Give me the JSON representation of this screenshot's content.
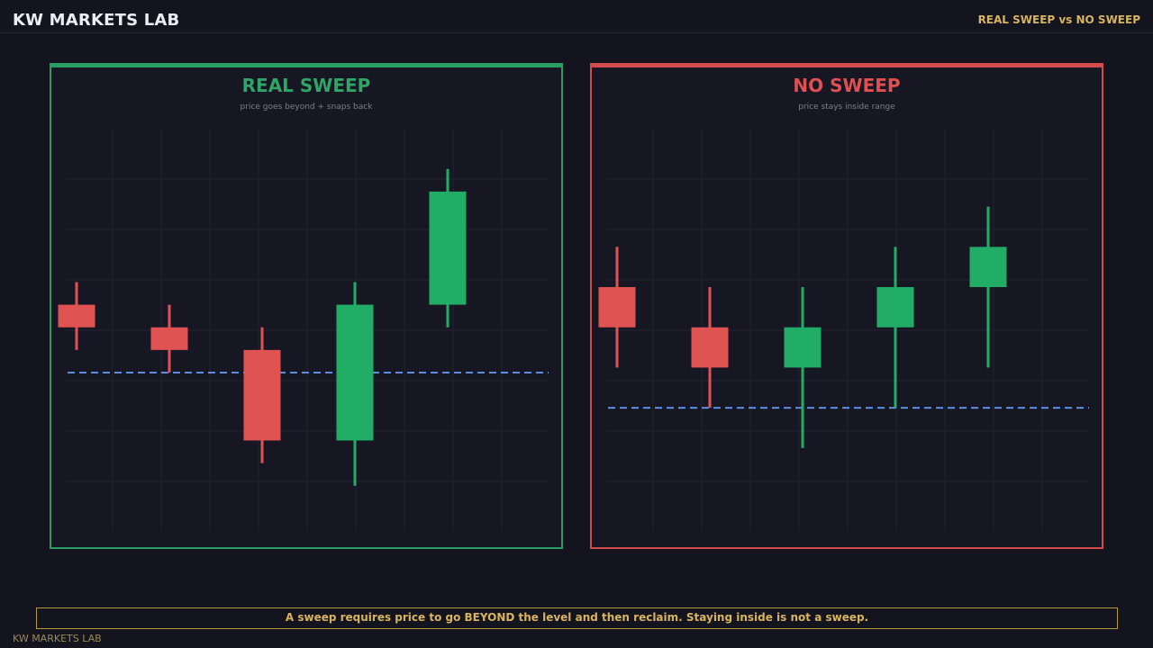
{
  "header": {
    "brand": "KW MARKETS LAB",
    "tagline": "REAL SWEEP vs NO SWEEP"
  },
  "colors": {
    "bull": "#21ad66",
    "bear": "#e05353",
    "level": "#5b8ee0",
    "grid": "#222231",
    "real_border": "#2a9d62",
    "no_border": "#d24c4c",
    "accent": "#d8b45e"
  },
  "chart_data": [
    {
      "type": "candlestick",
      "title": "REAL SWEEP",
      "subtitle": "price goes beyond + snaps back",
      "ylim": [
        0,
        8
      ],
      "level": 3.15,
      "candles": [
        {
          "open": 4.5,
          "high": 4.95,
          "low": 3.6,
          "close": 4.05
        },
        {
          "open": 4.05,
          "high": 4.5,
          "low": 3.15,
          "close": 3.6
        },
        {
          "open": 3.6,
          "high": 4.05,
          "low": 1.35,
          "close": 1.8
        },
        {
          "open": 1.8,
          "high": 4.95,
          "low": 0.9,
          "close": 4.5
        },
        {
          "open": 4.5,
          "high": 7.2,
          "low": 4.05,
          "close": 6.75
        }
      ]
    },
    {
      "type": "candlestick",
      "title": "NO SWEEP",
      "subtitle": "price stays inside range",
      "ylim": [
        0,
        8
      ],
      "level": 2.45,
      "candles": [
        {
          "open": 4.85,
          "high": 5.65,
          "low": 3.25,
          "close": 4.05
        },
        {
          "open": 4.05,
          "high": 4.85,
          "low": 2.45,
          "close": 3.25
        },
        {
          "open": 3.25,
          "high": 4.85,
          "low": 1.65,
          "close": 4.05
        },
        {
          "open": 4.05,
          "high": 5.65,
          "low": 2.45,
          "close": 4.85
        },
        {
          "open": 4.85,
          "high": 6.45,
          "low": 3.25,
          "close": 5.65
        }
      ]
    }
  ],
  "footer": {
    "note": "A sweep requires price to go BEYOND the level and then reclaim. Staying inside is not a sweep.",
    "brand": "KW MARKETS LAB"
  }
}
